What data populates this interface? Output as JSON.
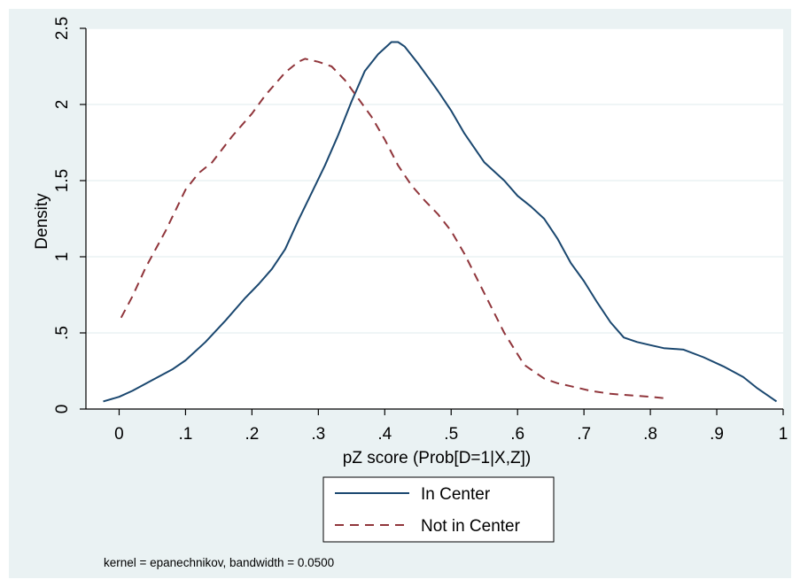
{
  "chart_data": {
    "type": "line",
    "xlabel": "pZ score (Prob[D=1|X,Z])",
    "ylabel": "Density",
    "xlim": [
      -0.05,
      1.0
    ],
    "ylim": [
      0,
      2.5
    ],
    "x_ticks": [
      0,
      0.1,
      0.2,
      0.3,
      0.4,
      0.5,
      0.6,
      0.7,
      0.8,
      0.9,
      1
    ],
    "x_tick_labels": [
      "0",
      ".1",
      ".2",
      ".3",
      ".4",
      ".5",
      ".6",
      ".7",
      ".8",
      ".9",
      "1"
    ],
    "y_ticks": [
      0,
      0.5,
      1,
      1.5,
      2,
      2.5
    ],
    "y_tick_labels": [
      "0",
      ".5",
      "1",
      "1.5",
      "2",
      "2.5"
    ],
    "grid": "horizontal",
    "legend_position": "bottom",
    "note": "kernel = epanechnikov, bandwidth = 0.0500",
    "colors": {
      "background": "#eaf2f3",
      "plot_background": "#ffffff",
      "grid": "#eaf2f3",
      "in_center": "#1a476f",
      "not_in_center": "#90353b"
    },
    "series": [
      {
        "name": "In Center",
        "style": "solid",
        "x": [
          -0.024,
          0.0,
          0.02,
          0.05,
          0.08,
          0.1,
          0.13,
          0.16,
          0.19,
          0.21,
          0.23,
          0.25,
          0.27,
          0.29,
          0.31,
          0.33,
          0.35,
          0.37,
          0.39,
          0.41,
          0.42,
          0.43,
          0.45,
          0.47,
          0.48,
          0.5,
          0.52,
          0.55,
          0.58,
          0.6,
          0.62,
          0.64,
          0.66,
          0.68,
          0.7,
          0.72,
          0.74,
          0.76,
          0.78,
          0.8,
          0.82,
          0.85,
          0.88,
          0.91,
          0.94,
          0.96,
          0.99
        ],
        "y": [
          0.05,
          0.08,
          0.12,
          0.19,
          0.26,
          0.32,
          0.44,
          0.58,
          0.73,
          0.82,
          0.92,
          1.05,
          1.24,
          1.42,
          1.6,
          1.8,
          2.02,
          2.22,
          2.33,
          2.41,
          2.41,
          2.38,
          2.27,
          2.15,
          2.09,
          1.96,
          1.81,
          1.62,
          1.5,
          1.4,
          1.33,
          1.25,
          1.12,
          0.96,
          0.84,
          0.7,
          0.57,
          0.47,
          0.44,
          0.42,
          0.4,
          0.39,
          0.34,
          0.28,
          0.21,
          0.14,
          0.05
        ]
      },
      {
        "name": "Not in Center",
        "style": "dashed",
        "x": [
          0.003,
          0.02,
          0.04,
          0.07,
          0.1,
          0.12,
          0.14,
          0.17,
          0.2,
          0.22,
          0.25,
          0.27,
          0.28,
          0.3,
          0.32,
          0.34,
          0.36,
          0.38,
          0.4,
          0.42,
          0.44,
          0.46,
          0.48,
          0.5,
          0.52,
          0.55,
          0.58,
          0.61,
          0.64,
          0.66,
          0.68,
          0.71,
          0.74,
          0.77,
          0.8,
          0.825
        ],
        "y": [
          0.6,
          0.74,
          0.93,
          1.17,
          1.44,
          1.55,
          1.62,
          1.79,
          1.94,
          2.06,
          2.21,
          2.28,
          2.3,
          2.28,
          2.25,
          2.16,
          2.04,
          1.92,
          1.77,
          1.6,
          1.47,
          1.37,
          1.28,
          1.17,
          1.02,
          0.76,
          0.5,
          0.29,
          0.2,
          0.17,
          0.15,
          0.12,
          0.1,
          0.09,
          0.08,
          0.07
        ]
      }
    ]
  }
}
